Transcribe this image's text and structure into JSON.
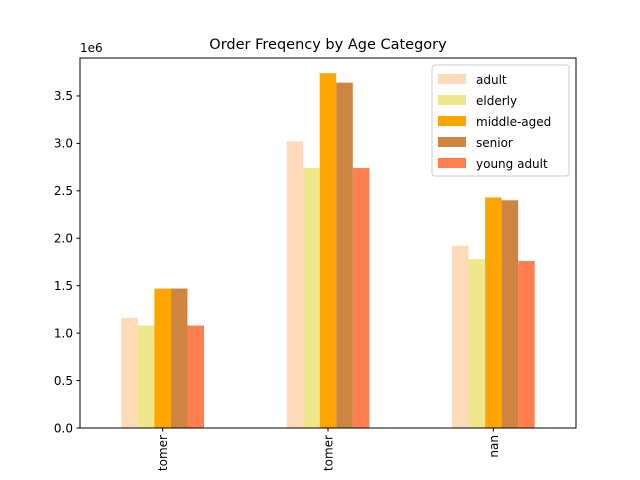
{
  "chart_data": {
    "type": "bar",
    "title": "Order Freqency by Age Category",
    "xlabel": "",
    "ylabel": "",
    "offset_label": "1e6",
    "categories": [
      "tomer",
      "tomer",
      "nan"
    ],
    "ylim": [
      0,
      3.9
    ],
    "yticks": [
      0.0,
      0.5,
      1.0,
      1.5,
      2.0,
      2.5,
      3.0,
      3.5
    ],
    "ytick_labels": [
      "0.0",
      "0.5",
      "1.0",
      "1.5",
      "2.0",
      "2.5",
      "3.0",
      "3.5"
    ],
    "series": [
      {
        "name": "adult",
        "color": "#FFDAB9",
        "values": [
          1.16,
          3.02,
          1.92
        ]
      },
      {
        "name": "elderly",
        "color": "#F0E68C",
        "values": [
          1.08,
          2.74,
          1.78
        ]
      },
      {
        "name": "middle-aged",
        "color": "#FFA500",
        "values": [
          1.47,
          3.74,
          2.43
        ]
      },
      {
        "name": "senior",
        "color": "#CD853F",
        "values": [
          1.47,
          3.64,
          2.4
        ]
      },
      {
        "name": "young adult",
        "color": "#FF7F50",
        "values": [
          1.08,
          2.74,
          1.76
        ]
      }
    ],
    "legend_position": "top-right",
    "grid": false
  }
}
